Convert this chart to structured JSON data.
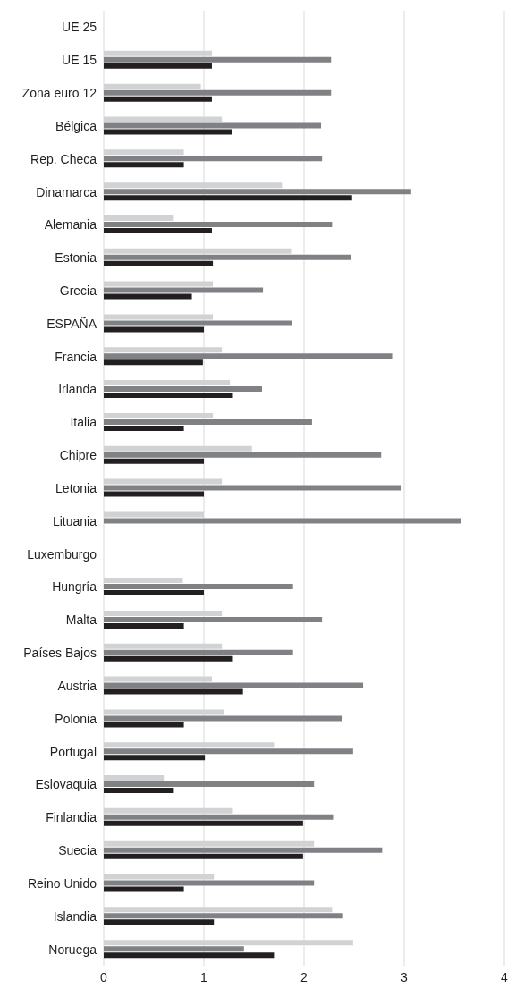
{
  "chart_data": {
    "type": "bar",
    "orientation": "horizontal",
    "categories": [
      "UE 25",
      "UE 15",
      "Zona euro 12",
      "Bélgica",
      "Rep. Checa",
      "Dinamarca",
      "Alemania",
      "Estonia",
      "Grecia",
      "ESPAÑA",
      "Francia",
      "Irlanda",
      "Italia",
      "Chipre",
      "Letonia",
      "Lituania",
      "Luxemburgo",
      "Hungría",
      "Malta",
      "Países Bajos",
      "Austria",
      "Polonia",
      "Portugal",
      "Eslovaquia",
      "Finlandia",
      "Suecia",
      "Reino Unido",
      "Islandia",
      "Noruega"
    ],
    "series": [
      {
        "color": "#d1d2d4",
        "values": [
          null,
          1.08,
          0.97,
          1.18,
          0.8,
          1.78,
          0.7,
          1.87,
          1.09,
          1.09,
          1.18,
          1.26,
          1.09,
          1.48,
          1.18,
          1.0,
          null,
          0.79,
          1.18,
          1.18,
          1.08,
          1.2,
          1.7,
          0.6,
          1.29,
          2.1,
          1.1,
          2.28,
          2.49
        ]
      },
      {
        "color": "#808184",
        "values": [
          null,
          2.27,
          2.27,
          2.17,
          2.18,
          3.07,
          2.28,
          2.47,
          1.59,
          1.88,
          2.88,
          1.58,
          2.08,
          2.77,
          2.97,
          3.57,
          null,
          1.89,
          2.18,
          1.89,
          2.59,
          2.38,
          2.49,
          2.1,
          2.29,
          2.78,
          2.1,
          2.39,
          1.4
        ]
      },
      {
        "color": "#231f20",
        "values": [
          null,
          1.08,
          1.08,
          1.28,
          0.8,
          2.48,
          1.08,
          1.09,
          0.88,
          1.0,
          0.99,
          1.29,
          0.8,
          1.0,
          1.0,
          null,
          null,
          1.0,
          0.8,
          1.29,
          1.39,
          0.8,
          1.01,
          0.7,
          1.99,
          1.99,
          0.8,
          1.1,
          1.7
        ]
      }
    ],
    "xlim": [
      0,
      4
    ],
    "xticks": [
      0,
      1,
      2,
      3,
      4
    ],
    "grid": "x"
  }
}
